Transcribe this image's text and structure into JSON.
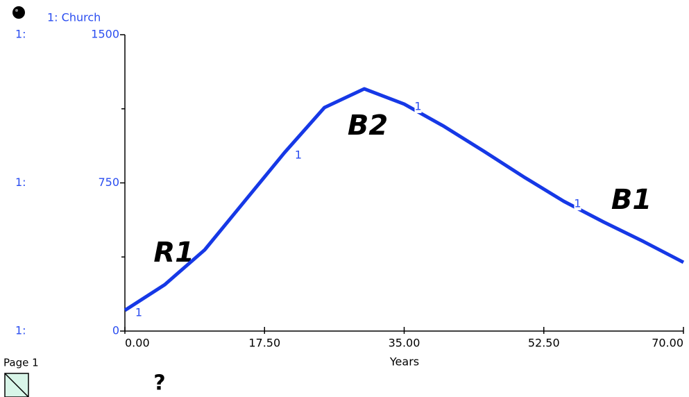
{
  "chart_data": {
    "type": "line",
    "series": [
      {
        "name": "1: Church",
        "color": "#1638e6",
        "values": [
          105,
          235,
          411,
          657,
          903,
          1131,
          1226,
          1149,
          1036,
          910,
          780,
          657,
          552,
          453,
          348
        ]
      }
    ],
    "x": [
      0,
      5,
      10,
      15,
      20,
      25,
      30,
      35,
      40,
      45,
      50,
      55,
      60,
      65,
      70
    ],
    "xlim": [
      0,
      70
    ],
    "xticks": [
      {
        "value": 0,
        "label": "0.00"
      },
      {
        "value": 17.5,
        "label": "17.50"
      },
      {
        "value": 35,
        "label": "35.00"
      },
      {
        "value": 52.5,
        "label": "52.50"
      },
      {
        "value": 70,
        "label": "70.00"
      }
    ],
    "ylim": [
      0,
      1500
    ],
    "yticks": [
      0,
      750,
      1500
    ],
    "y_minor_ticks": [
      375,
      1125
    ],
    "y_axis_prefix": "1:",
    "line_marker": "1",
    "x_label": "Years",
    "annotations": [
      "R1",
      "B2",
      "B1"
    ]
  },
  "page_label": "Page 1",
  "help_icon": "?"
}
